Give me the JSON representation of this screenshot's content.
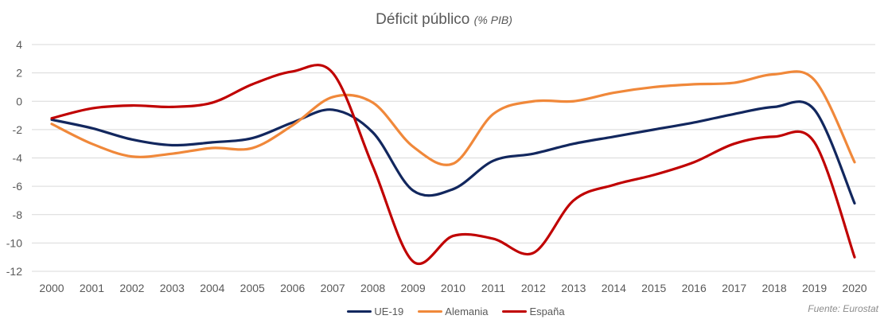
{
  "chart_data": {
    "type": "line",
    "title": "Déficit público",
    "subtitle": "(% PIB)",
    "xlabel": "",
    "ylabel": "",
    "x": [
      "2000",
      "2001",
      "2002",
      "2003",
      "2004",
      "2005",
      "2006",
      "2007",
      "2008",
      "2009",
      "2010",
      "2011",
      "2012",
      "2013",
      "2014",
      "2015",
      "2016",
      "2017",
      "2018",
      "2019",
      "2020"
    ],
    "ylim": [
      -12,
      4
    ],
    "yticks": [
      4,
      2,
      0,
      -2,
      -4,
      -6,
      -8,
      -10,
      -12
    ],
    "ytick_labels": [
      "4",
      "2",
      "0",
      "-2",
      "-4",
      "-6",
      "-8",
      "-10",
      "-12"
    ],
    "grid": true,
    "legend_position": "bottom",
    "smooth": true,
    "series": [
      {
        "name": "UE-19",
        "color": "#12275e",
        "values": [
          -1.3,
          -1.9,
          -2.7,
          -3.1,
          -2.9,
          -2.6,
          -1.5,
          -0.6,
          -2.2,
          -6.3,
          -6.2,
          -4.2,
          -3.7,
          -3.0,
          -2.5,
          -2.0,
          -1.5,
          -0.9,
          -0.4,
          -0.6,
          -7.2
        ]
      },
      {
        "name": "Alemania",
        "color": "#f0883a",
        "values": [
          -1.6,
          -3.0,
          -3.9,
          -3.7,
          -3.3,
          -3.3,
          -1.7,
          0.3,
          -0.1,
          -3.2,
          -4.4,
          -0.9,
          0.0,
          0.0,
          0.6,
          1.0,
          1.2,
          1.3,
          1.9,
          1.5,
          -4.3
        ]
      },
      {
        "name": "España",
        "color": "#c00000",
        "values": [
          -1.2,
          -0.5,
          -0.3,
          -0.4,
          -0.1,
          1.2,
          2.1,
          2.0,
          -4.6,
          -11.3,
          -9.5,
          -9.7,
          -10.7,
          -7.0,
          -5.9,
          -5.2,
          -4.3,
          -3.0,
          -2.5,
          -2.9,
          -11.0
        ]
      }
    ],
    "source_note": "Fuente: Eurostat"
  }
}
